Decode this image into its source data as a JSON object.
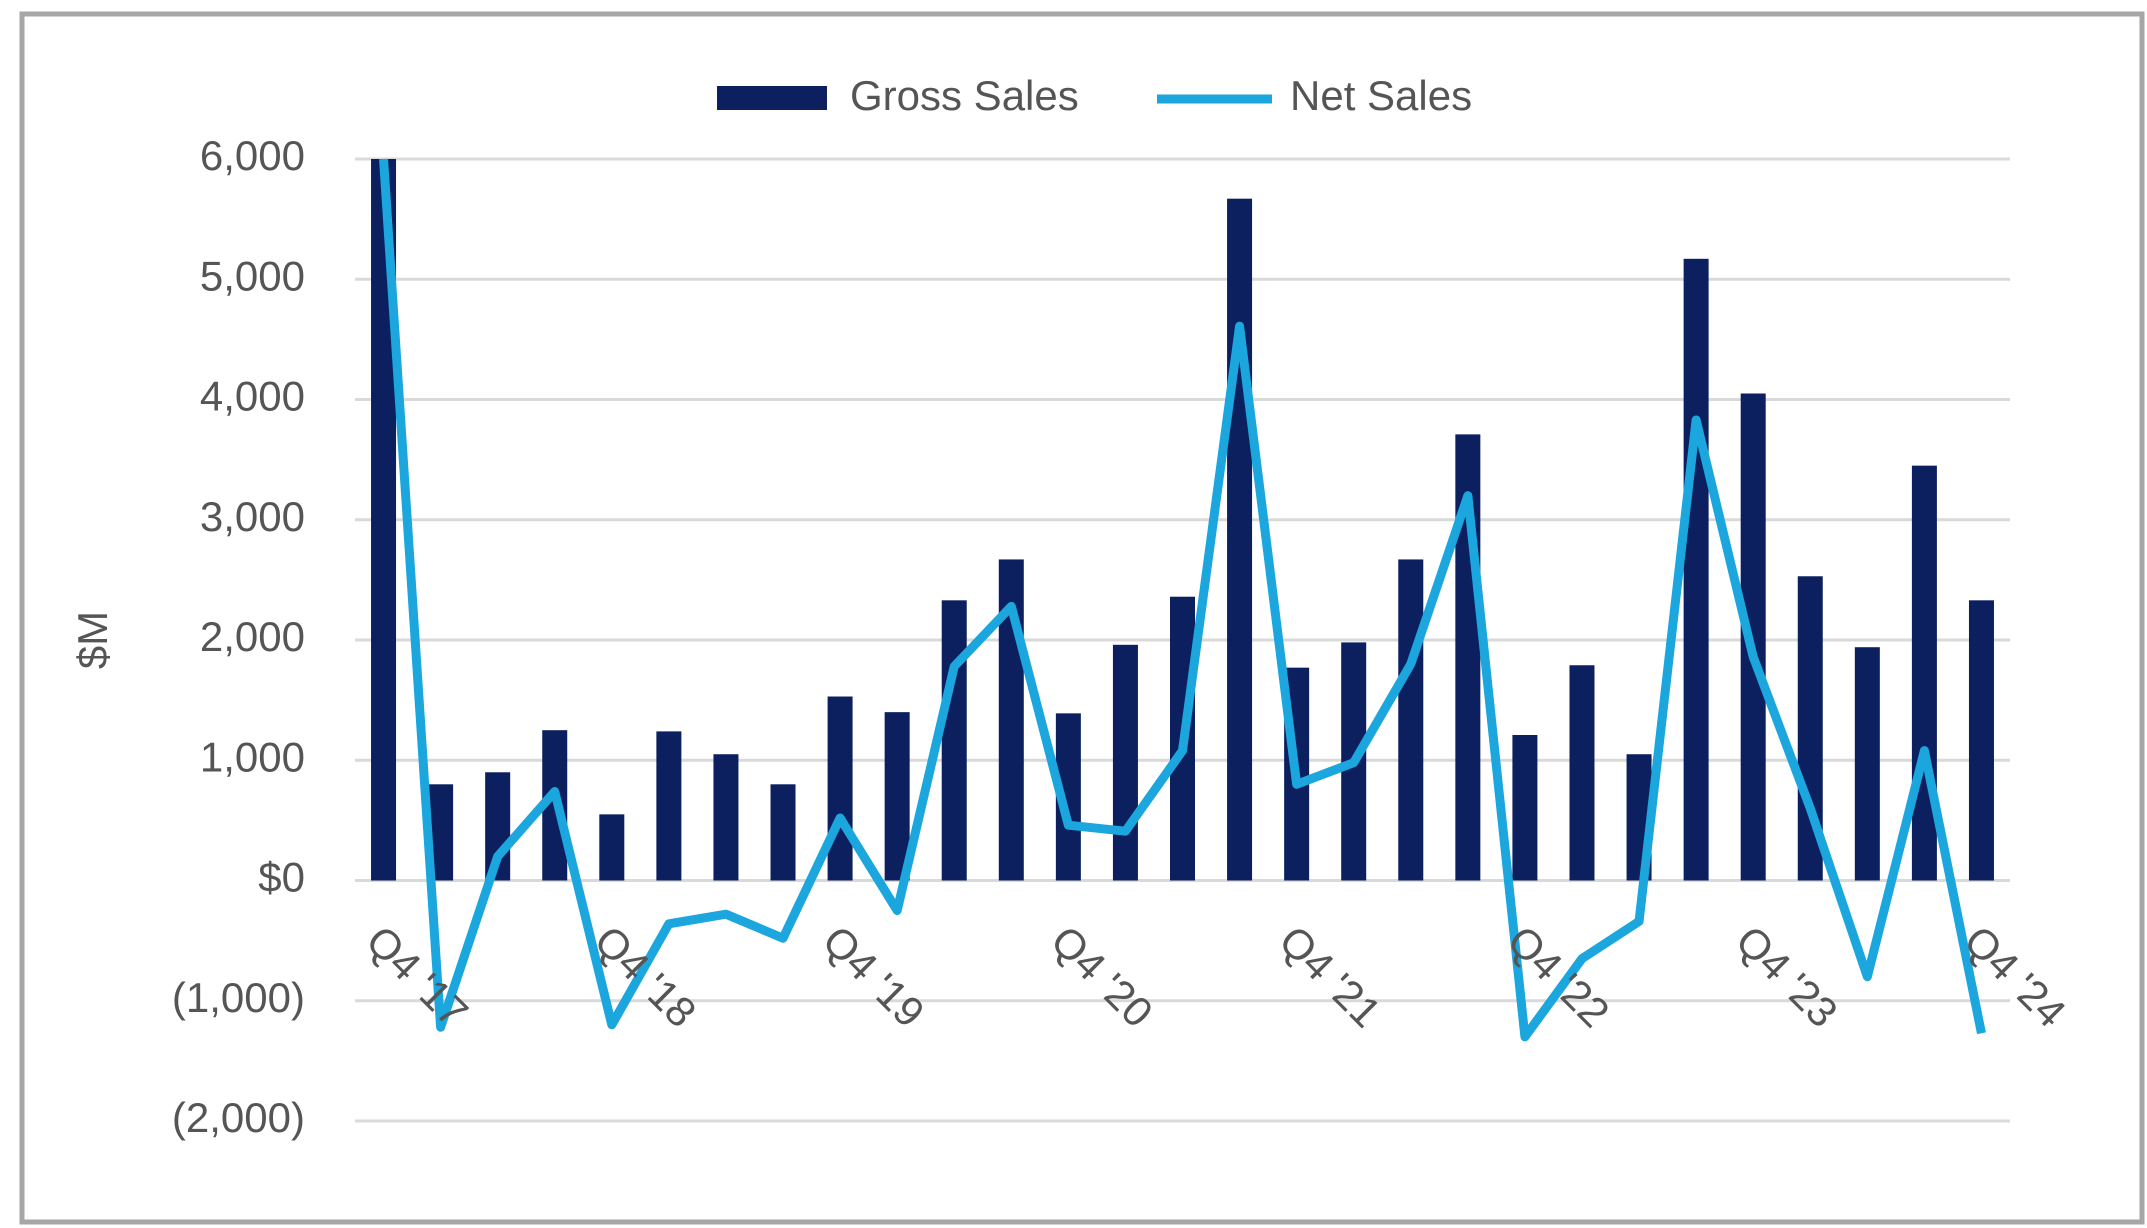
{
  "chart_data": {
    "type": "bar_line",
    "y_label": "$M",
    "categories": [
      "Q4 '17",
      null,
      null,
      null,
      "Q4 '18",
      null,
      null,
      null,
      "Q4 '19",
      null,
      null,
      null,
      "Q4 '20",
      null,
      null,
      null,
      "Q4 '21",
      null,
      null,
      null,
      "Q4 '22",
      null,
      null,
      null,
      "Q4 '23",
      null,
      null,
      null,
      "Q4 '24"
    ],
    "series": [
      {
        "name": "Gross Sales",
        "type": "bar",
        "color": "#0c1f5e",
        "values": [
          6000,
          800,
          900,
          1250,
          550,
          1240,
          1050,
          800,
          1530,
          1400,
          2330,
          2670,
          1390,
          1960,
          2360,
          5670,
          1770,
          1980,
          2670,
          3710,
          1210,
          1790,
          1050,
          5170,
          4050,
          2530,
          1940,
          3450,
          2330
        ]
      },
      {
        "name": "Net Sales",
        "type": "line",
        "color": "#1ba6de",
        "values": [
          6000,
          -1220,
          200,
          740,
          -1200,
          -360,
          -280,
          -480,
          520,
          -250,
          1780,
          2280,
          460,
          410,
          1080,
          4610,
          800,
          980,
          1800,
          3200,
          -1300,
          -650,
          -340,
          3830,
          1860,
          600,
          -800,
          1080,
          -1270
        ]
      }
    ],
    "ylim": [
      -2000,
      6000
    ],
    "yticks": [
      {
        "value": 6000,
        "label": "6,000"
      },
      {
        "value": 5000,
        "label": "5,000"
      },
      {
        "value": 4000,
        "label": "4,000"
      },
      {
        "value": 3000,
        "label": "3,000"
      },
      {
        "value": 2000,
        "label": "2,000"
      },
      {
        "value": 1000,
        "label": "1,000"
      },
      {
        "value": 0,
        "label": "$0"
      },
      {
        "value": -1000,
        "label": "(1,000)"
      },
      {
        "value": -2000,
        "label": "(2,000)"
      }
    ],
    "grid": true,
    "legend": "top"
  }
}
